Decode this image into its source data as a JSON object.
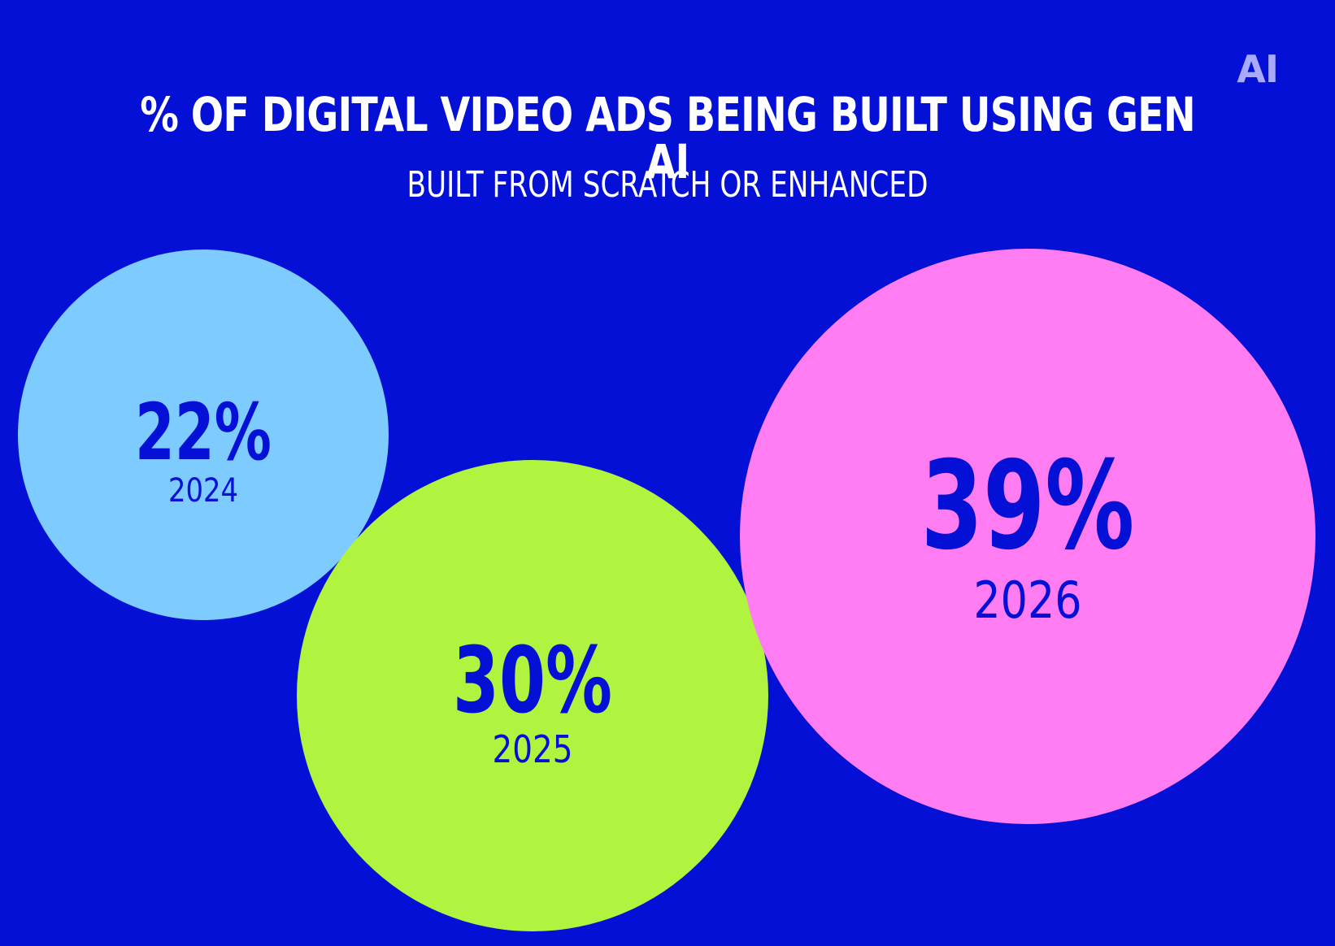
{
  "logo": "AI",
  "chart_data": {
    "type": "bubble",
    "title": "% OF DIGITAL VIDEO ADS BEING BUILT USING GEN AI",
    "subtitle": "BUILT FROM SCRATCH OR ENHANCED",
    "unit": "%",
    "categories": [
      "2024",
      "2025",
      "2026"
    ],
    "values": [
      22,
      30,
      39
    ],
    "labels": [
      "22%",
      "30%",
      "39%"
    ],
    "colors": [
      "#7ecbff",
      "#b0f43f",
      "#ff7cf2"
    ]
  }
}
